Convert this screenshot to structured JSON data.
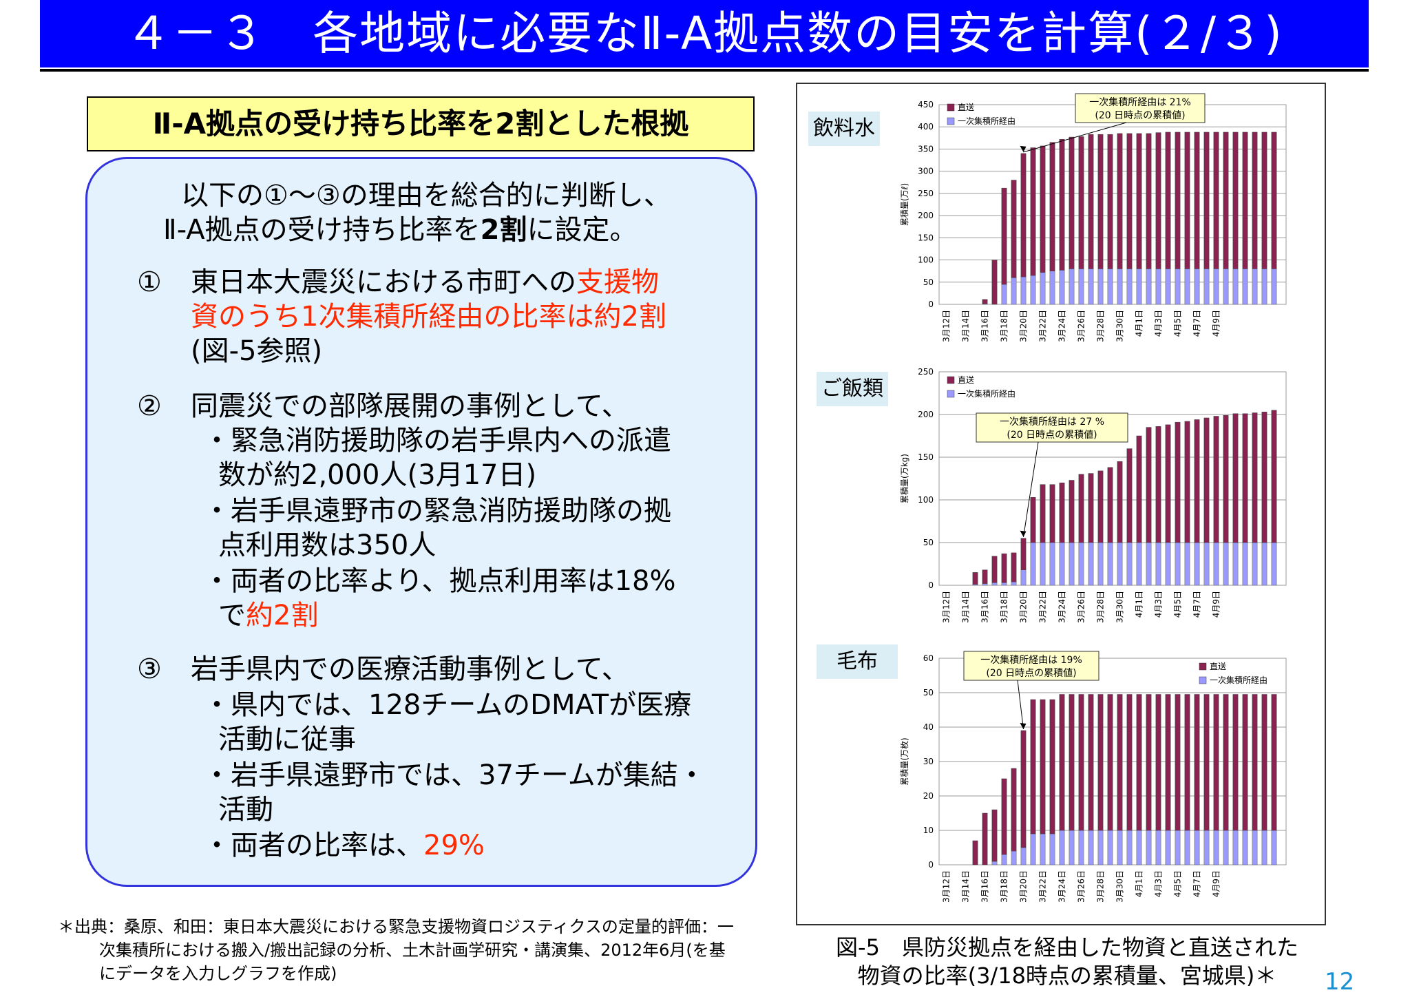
{
  "header": {
    "title": "４－３　各地域に必要なⅡ-A拠点数の目安を計算(２/３)"
  },
  "subtitle": "Ⅱ-A拠点の受け持ち比率を2割とした根拠",
  "intro": {
    "line1": "以下の①～③の理由を総合的に判断し、",
    "line2_pre": "Ⅱ-A拠点の受け持ち比率を",
    "line2_bold": "2割",
    "line2_post": "に設定。"
  },
  "reason1": {
    "num": "①",
    "line1_pre": "東日本大震災における市町への",
    "line1_red": "支援物",
    "line2_red": "資のうち1次集積所経由の比率は約2割",
    "line3": "(図-5参照)"
  },
  "reason2": {
    "num": "②",
    "line1": "同震災での部隊展開の事例として、",
    "b1_line1": "・緊急消防援助隊の岩手県内への派遣",
    "b1_line2": "数が約2,000人(3月17日)",
    "b2_line1": "・岩手県遠野市の緊急消防援助隊の拠",
    "b2_line2": "点利用数は350人",
    "b3_line1": "・両者の比率より、拠点利用率は18%",
    "b3_line2_pre": "で",
    "b3_line2_red": "約2割"
  },
  "reason3": {
    "num": "③",
    "line1": "岩手県内での医療活動事例として、",
    "b1_line1": "・県内では、128チームのDMATが医療",
    "b1_line2": "活動に従事",
    "b2_line1": "・岩手県遠野市では、37チームが集結・",
    "b2_line2": "活動",
    "b3_pre": "・両者の比率は、",
    "b3_red": "29%"
  },
  "footnote": {
    "line1": "＊出典：桑原、和田：東日本大震災における緊急支援物資ロジスティクスの定量的評価：一",
    "line2": "次集積所における搬入/搬出記録の分析、土木計画学研究・講演集、2012年6月(を基",
    "line3": "にデータを入力しグラフを作成)"
  },
  "caption": {
    "line1": "図-5　県防災拠点を経由した物資と直送された",
    "line2": "物資の比率(3/18時点の累積量、宮城県)＊"
  },
  "page_number": "12",
  "colors": {
    "direct": "#8b2252",
    "via": "#9999ff",
    "title_bg": "#0000ff",
    "red_text": "#ff2a00",
    "subtitle_bg": "#ffff99",
    "panel_bg": "#e3f2fc"
  },
  "chart_data": [
    {
      "type": "bar",
      "stacked": true,
      "label": "飲料水",
      "ylabel": "累積量(万ℓ)",
      "ylim": [
        0,
        450
      ],
      "yticks": [
        0,
        50,
        100,
        150,
        200,
        250,
        300,
        350,
        400,
        450
      ],
      "x_tick_labels": [
        "3月12日",
        "3月14日",
        "3月16日",
        "3月18日",
        "3月20日",
        "3月22日",
        "3月24日",
        "3月26日",
        "3月28日",
        "3月30日",
        "4月1日",
        "4月3日",
        "4月5日",
        "4月7日",
        "4月9日"
      ],
      "legend": [
        "直送",
        "一次集積所経由"
      ],
      "legend_position": "top-left",
      "annotation": {
        "line1": "一次集積所経由は 21%",
        "line2": "(20 日時点の累積値)",
        "target_index": 8
      },
      "series": [
        {
          "name": "一次集積所経由",
          "values": [
            0,
            0,
            0,
            0,
            1,
            0,
            45,
            60,
            62,
            65,
            72,
            75,
            77,
            80,
            80,
            80,
            80,
            80,
            80,
            80,
            80,
            80,
            80,
            80,
            80,
            80,
            80,
            80,
            80,
            80,
            80,
            80,
            80,
            80,
            80
          ]
        },
        {
          "name": "直送",
          "values": [
            0,
            0,
            0,
            0,
            10,
            100,
            217,
            220,
            278,
            288,
            285,
            290,
            295,
            297,
            298,
            303,
            303,
            303,
            305,
            305,
            305,
            305,
            307,
            308,
            308,
            308,
            308,
            308,
            308,
            308,
            308,
            308,
            308,
            308,
            308
          ]
        }
      ]
    },
    {
      "type": "bar",
      "stacked": true,
      "label": "ご飯類",
      "ylabel": "累積量(万kg)",
      "ylim": [
        0,
        250
      ],
      "yticks": [
        0,
        50,
        100,
        150,
        200,
        250
      ],
      "x_tick_labels": [
        "3月12日",
        "3月14日",
        "3月16日",
        "3月18日",
        "3月20日",
        "3月22日",
        "3月24日",
        "3月26日",
        "3月28日",
        "3月30日",
        "4月1日",
        "4月3日",
        "4月5日",
        "4月7日",
        "4月9日"
      ],
      "legend": [
        "直送",
        "一次集積所経由"
      ],
      "legend_position": "top-left",
      "annotation": {
        "line1": "一次集積所経由は 27 %",
        "line2": "(20 日時点の累積値)",
        "target_index": 8
      },
      "series": [
        {
          "name": "一次集積所経由",
          "values": [
            0,
            0,
            0,
            1,
            2,
            3,
            3,
            4,
            18,
            50,
            50,
            50,
            50,
            50,
            50,
            50,
            50,
            50,
            50,
            50,
            50,
            50,
            50,
            50,
            50,
            50,
            50,
            50,
            50,
            50,
            50,
            50,
            50,
            50,
            50
          ]
        },
        {
          "name": "直送",
          "values": [
            0,
            0,
            0,
            14,
            16,
            31,
            34,
            34,
            37,
            53,
            68,
            68,
            70,
            73,
            80,
            81,
            84,
            88,
            95,
            110,
            125,
            135,
            136,
            138,
            141,
            142,
            144,
            146,
            148,
            149,
            151,
            151,
            152,
            153,
            155
          ]
        }
      ]
    },
    {
      "type": "bar",
      "stacked": true,
      "label": "毛布",
      "ylabel": "累積量(万枚)",
      "ylim": [
        0,
        60
      ],
      "yticks": [
        0,
        10,
        20,
        30,
        40,
        50,
        60
      ],
      "x_tick_labels": [
        "3月12日",
        "3月14日",
        "3月16日",
        "3月18日",
        "3月20日",
        "3月22日",
        "3月24日",
        "3月26日",
        "3月28日",
        "3月30日",
        "4月1日",
        "4月3日",
        "4月5日",
        "4月7日",
        "4月9日"
      ],
      "legend": [
        "直送",
        "一次集積所経由"
      ],
      "legend_position": "top-right",
      "annotation": {
        "line1": "一次集積所経由は 19%",
        "line2": "(20 日時点の累積値)",
        "target_index": 8
      },
      "series": [
        {
          "name": "一次集積所経由",
          "values": [
            0,
            0,
            0,
            0,
            0,
            1,
            3,
            4,
            5,
            9,
            9,
            9,
            10,
            10,
            10,
            10,
            10,
            10,
            10,
            10,
            10,
            10,
            10,
            10,
            10,
            10,
            10,
            10,
            10,
            10,
            10,
            10,
            10,
            10,
            10
          ]
        },
        {
          "name": "直送",
          "values": [
            0,
            0,
            0,
            7,
            15,
            15,
            22,
            24,
            34,
            39,
            39,
            39,
            39.5,
            39.5,
            39.5,
            39.5,
            39.5,
            39.5,
            39.5,
            39.5,
            39.5,
            39.5,
            39.5,
            39.5,
            39.5,
            39.5,
            39.5,
            39.5,
            39.5,
            39.5,
            39.5,
            39.5,
            39.5,
            39.5,
            39.5
          ]
        }
      ]
    }
  ]
}
